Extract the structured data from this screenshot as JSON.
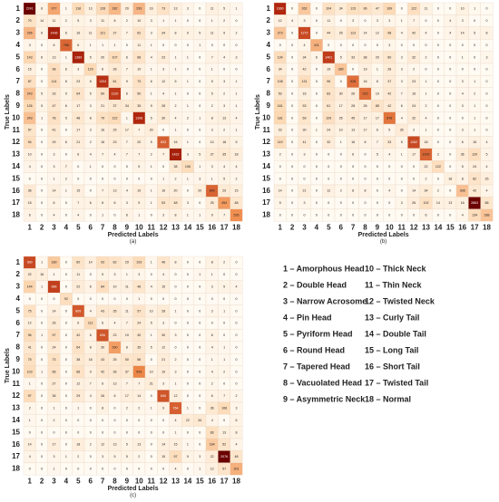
{
  "chart_data": [
    {
      "type": "heatmap",
      "caption": "(a)",
      "xlabel": "Predicted Labels",
      "ylabel": "True Labels",
      "x_categories": [
        "1",
        "2",
        "3",
        "4",
        "5",
        "6",
        "7",
        "8",
        "9",
        "10",
        "11",
        "12",
        "13",
        "14",
        "15",
        "16",
        "17",
        "18"
      ],
      "y_categories": [
        "1",
        "2",
        "3",
        "4",
        "5",
        "6",
        "7",
        "8",
        "9",
        "10",
        "11",
        "12",
        "13",
        "14",
        "15",
        "16",
        "17",
        "18"
      ],
      "colormap": [
        "#fffaf2",
        "#fcd9b4",
        "#ef8a4a",
        "#b4280f",
        "#6b0000"
      ],
      "values": [
        [
          2241,
          6,
          377,
          1,
          118,
          13,
          128,
          282,
          20,
          293,
          16,
          73,
          13,
          3,
          0,
          11,
          5,
          1
        ],
        [
          70,
          14,
          11,
          2,
          5,
          3,
          11,
          6,
          2,
          10,
          3,
          1,
          1,
          0,
          0,
          1,
          2,
          0
        ],
        [
          296,
          6,
          1436,
          6,
          16,
          11,
          121,
          37,
          7,
          62,
          3,
          34,
          8,
          9,
          5,
          11,
          9,
          2
        ],
        [
          3,
          0,
          6,
          786,
          6,
          1,
          1,
          1,
          0,
          11,
          1,
          0,
          0,
          0,
          1,
          0,
          0,
          0
        ],
        [
          143,
          6,
          13,
          1,
          1389,
          5,
          20,
          107,
          6,
          68,
          4,
          23,
          1,
          1,
          0,
          7,
          4,
          3
        ],
        [
          15,
          0,
          98,
          6,
          3,
          129,
          6,
          28,
          7,
          10,
          1,
          3,
          1,
          0,
          0,
          1,
          0,
          0
        ],
        [
          87,
          0,
          114,
          6,
          23,
          8,
          1204,
          81,
          9,
          73,
          6,
          12,
          5,
          1,
          0,
          5,
          3,
          1
        ],
        [
          243,
          5,
          33,
          5,
          64,
          5,
          60,
          1120,
          6,
          50,
          1,
          4,
          1,
          0,
          0,
          5,
          2,
          1
        ],
        [
          126,
          5,
          47,
          6,
          17,
          3,
          21,
          37,
          34,
          35,
          9,
          28,
          2,
          1,
          0,
          2,
          3,
          1
        ],
        [
          243,
          1,
          78,
          5,
          48,
          8,
          79,
          122,
          1,
          1308,
          5,
          30,
          4,
          2,
          1,
          8,
          13,
          4
        ],
        [
          57,
          0,
          41,
          0,
          17,
          3,
          16,
          25,
          17,
          7,
          20,
          0,
          1,
          0,
          0,
          3,
          2,
          1
        ],
        [
          94,
          0,
          29,
          6,
          21,
          2,
          16,
          23,
          7,
          20,
          5,
          833,
          16,
          1,
          0,
          10,
          18,
          5
        ],
        [
          10,
          0,
          3,
          0,
          6,
          4,
          7,
          4,
          7,
          7,
          2,
          7,
          1422,
          3,
          5,
          27,
          35,
          18
        ],
        [
          4,
          0,
          3,
          7,
          0,
          1,
          0,
          0,
          0,
          5,
          1,
          0,
          38,
          106,
          1,
          3,
          4,
          4
        ],
        [
          0,
          0,
          1,
          2,
          0,
          0,
          0,
          0,
          0,
          0,
          0,
          1,
          2,
          1,
          3,
          1,
          5,
          2
        ],
        [
          36,
          0,
          14,
          1,
          15,
          0,
          7,
          13,
          4,
          19,
          1,
          16,
          20,
          0,
          20,
          804,
          29,
          15
        ],
        [
          15,
          0,
          6,
          0,
          7,
          6,
          8,
          6,
          3,
          9,
          1,
          53,
          48,
          3,
          0,
          25,
          454,
          48
        ],
        [
          6,
          0,
          4,
          0,
          4,
          0,
          1,
          0,
          6,
          1,
          0,
          3,
          8,
          1,
          1,
          9,
          7,
          526
        ]
      ]
    },
    {
      "type": "heatmap",
      "caption": "(b)",
      "xlabel": "Predicted Labels",
      "ylabel": "True Labels",
      "x_categories": [
        "1",
        "2",
        "3",
        "4",
        "5",
        "6",
        "7",
        "8",
        "9",
        "10",
        "11",
        "12",
        "13",
        "14",
        "15",
        "16",
        "17",
        "18"
      ],
      "y_categories": [
        "1",
        "2",
        "3",
        "4",
        "5",
        "6",
        "7",
        "8",
        "9",
        "10",
        "11",
        "12",
        "13",
        "14",
        "15",
        "16",
        "17",
        "18"
      ],
      "colormap": [
        "#fffaf2",
        "#fcd9b4",
        "#ef8a4a",
        "#b4280f",
        "#6b0000"
      ],
      "values": [
        [
          1660,
          0,
          262,
          0,
          104,
          34,
          115,
          96,
          47,
          169,
          0,
          122,
          11,
          0,
          0,
          10,
          1,
          0
        ],
        [
          12,
          4,
          3,
          0,
          11,
          0,
          3,
          0,
          3,
          3,
          1,
          7,
          0,
          0,
          4,
          3,
          0,
          0
        ],
        [
          273,
          0,
          1272,
          0,
          44,
          25,
          113,
          14,
          12,
          98,
          4,
          42,
          4,
          0,
          4,
          14,
          5,
          8
        ],
        [
          0,
          0,
          4,
          411,
          0,
          0,
          0,
          0,
          0,
          3,
          0,
          0,
          0,
          0,
          0,
          0,
          0,
          0
        ],
        [
          134,
          0,
          34,
          6,
          1401,
          5,
          33,
          38,
          20,
          60,
          3,
          32,
          2,
          0,
          0,
          1,
          0,
          3
        ],
        [
          34,
          0,
          42,
          0,
          19,
          280,
          0,
          19,
          1,
          28,
          3,
          2,
          0,
          0,
          0,
          0,
          0,
          0
        ],
        [
          108,
          0,
          131,
          0,
          96,
          0,
          928,
          16,
          6,
          37,
          3,
          23,
          1,
          0,
          0,
          3,
          1,
          0
        ],
        [
          53,
          0,
          16,
          0,
          83,
          30,
          26,
          915,
          10,
          42,
          7,
          16,
          1,
          0,
          0,
          4,
          2,
          0
        ],
        [
          161,
          0,
          53,
          0,
          61,
          17,
          28,
          28,
          85,
          42,
          6,
          24,
          2,
          0,
          0,
          3,
          1,
          0
        ],
        [
          181,
          0,
          69,
          0,
          109,
          25,
          45,
          17,
          17,
          878,
          4,
          32,
          4,
          0,
          0,
          0,
          1,
          0
        ],
        [
          23,
          0,
          30,
          1,
          24,
          10,
          13,
          17,
          6,
          5,
          35,
          2,
          1,
          0,
          0,
          3,
          1,
          0
        ],
        [
          119,
          0,
          41,
          0,
          32,
          1,
          16,
          8,
          7,
          33,
          5,
          1262,
          18,
          0,
          0,
          6,
          15,
          4
        ],
        [
          2,
          0,
          3,
          0,
          0,
          0,
          6,
          0,
          5,
          4,
          1,
          17,
          1002,
          2,
          0,
          36,
          120,
          5
        ],
        [
          0,
          0,
          0,
          0,
          0,
          0,
          0,
          0,
          0,
          0,
          0,
          0,
          22,
          122,
          0,
          5,
          24,
          4
        ],
        [
          0,
          0,
          0,
          0,
          0,
          0,
          0,
          0,
          0,
          0,
          0,
          0,
          2,
          0,
          18,
          8,
          82,
          25
        ],
        [
          14,
          0,
          21,
          0,
          12,
          2,
          8,
          8,
          0,
          4,
          0,
          14,
          34,
          2,
          0,
          308,
          42,
          4
        ],
        [
          5,
          0,
          3,
          0,
          0,
          0,
          0,
          0,
          0,
          0,
          3,
          26,
          102,
          14,
          13,
          16,
          2863,
          68
        ],
        [
          0,
          0,
          0,
          0,
          0,
          0,
          0,
          0,
          0,
          0,
          0,
          0,
          6,
          0,
          0,
          4,
          134,
          288
        ]
      ]
    },
    {
      "type": "heatmap",
      "caption": "(c)",
      "xlabel": "Predicted Labels",
      "ylabel": "True Labels",
      "x_categories": [
        "1",
        "2",
        "3",
        "4",
        "5",
        "6",
        "7",
        "8",
        "9",
        "10",
        "11",
        "12",
        "13",
        "14",
        "15",
        "16",
        "17",
        "18"
      ],
      "y_categories": [
        "1",
        "2",
        "3",
        "4",
        "5",
        "6",
        "7",
        "8",
        "9",
        "10",
        "11",
        "12",
        "13",
        "14",
        "15",
        "16",
        "17",
        "18"
      ],
      "colormap": [
        "#fffaf2",
        "#fcd9b4",
        "#ef8a4a",
        "#b4280f",
        "#6b0000"
      ],
      "values": [
        [
          930,
          1,
          189,
          0,
          60,
          14,
          93,
          62,
          29,
          103,
          1,
          46,
          8,
          0,
          0,
          8,
          2,
          0
        ],
        [
          22,
          16,
          1,
          0,
          11,
          0,
          5,
          3,
          1,
          3,
          0,
          4,
          0,
          0,
          1,
          1,
          0,
          0
        ],
        [
          144,
          1,
          986,
          0,
          22,
          6,
          84,
          10,
          11,
          48,
          4,
          15,
          0,
          0,
          0,
          3,
          5,
          4
        ],
        [
          0,
          0,
          0,
          92,
          0,
          0,
          0,
          0,
          0,
          1,
          0,
          0,
          0,
          0,
          0,
          0,
          0,
          0
        ],
        [
          75,
          0,
          14,
          0,
          809,
          4,
          43,
          35,
          11,
          57,
          10,
          28,
          1,
          0,
          0,
          3,
          1,
          0
        ],
        [
          12,
          0,
          26,
          0,
          6,
          112,
          6,
          4,
          7,
          24,
          5,
          3,
          0,
          0,
          0,
          0,
          0,
          0
        ],
        [
          96,
          1,
          97,
          0,
          42,
          6,
          836,
          23,
          19,
          40,
          1,
          30,
          3,
          0,
          0,
          6,
          0,
          0
        ],
        [
          41,
          0,
          24,
          0,
          64,
          8,
          30,
          390,
          8,
          35,
          5,
          12,
          0,
          0,
          0,
          4,
          1,
          0
        ],
        [
          75,
          0,
          73,
          0,
          38,
          18,
          43,
          25,
          50,
          56,
          0,
          21,
          2,
          0,
          0,
          1,
          1,
          0
        ],
        [
          103,
          1,
          66,
          0,
          68,
          9,
          42,
          36,
          37,
          543,
          10,
          19,
          3,
          0,
          0,
          4,
          2,
          0
        ],
        [
          1,
          0,
          27,
          0,
          12,
          7,
          6,
          13,
          7,
          7,
          21,
          3,
          1,
          0,
          0,
          2,
          0,
          0
        ],
        [
          97,
          0,
          36,
          0,
          29,
          4,
          26,
          6,
          17,
          14,
          0,
          840,
          12,
          0,
          0,
          6,
          7,
          2
        ],
        [
          2,
          0,
          1,
          0,
          1,
          0,
          8,
          0,
          2,
          2,
          1,
          9,
          764,
          1,
          0,
          36,
          108,
          3
        ],
        [
          1,
          0,
          2,
          0,
          0,
          0,
          0,
          0,
          0,
          0,
          0,
          0,
          4,
          22,
          34,
          4,
          0,
          6
        ],
        [
          0,
          0,
          0,
          0,
          0,
          0,
          0,
          0,
          0,
          0,
          0,
          0,
          1,
          0,
          0,
          83,
          13,
          8
        ],
        [
          14,
          0,
          17,
          0,
          18,
          2,
          12,
          13,
          5,
          13,
          0,
          14,
          15,
          1,
          0,
          184,
          52,
          4
        ],
        [
          4,
          0,
          3,
          1,
          2,
          0,
          3,
          5,
          5,
          2,
          0,
          15,
          97,
          5,
          3,
          22,
          2076,
          48
        ],
        [
          0,
          0,
          1,
          0,
          0,
          0,
          0,
          0,
          0,
          0,
          0,
          0,
          4,
          0,
          1,
          12,
          57,
          301
        ]
      ]
    }
  ],
  "class_legend": [
    "1 – Amorphous Head",
    "2 – Double Head",
    "3 – Narrow Acrosome",
    "4 – Pin Head",
    "5 – Pyriform Head",
    "6 – Round Head",
    "7 – Tapered Head",
    "8 – Vacuolated Head",
    "9 – Asymmetric Neck",
    "10 – Thick Neck",
    "11 – Thin Neck",
    "12 – Twisted Neck",
    "13 – Curly Tail",
    "14 – Double Tail",
    "15 – Long Tail",
    "16 – Short Tail",
    "17 – Twisted Tail",
    "18 – Normal"
  ]
}
